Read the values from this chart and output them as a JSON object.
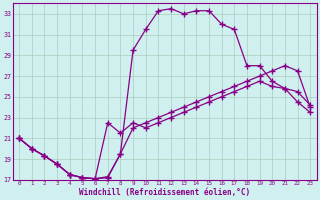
{
  "xlabel": "Windchill (Refroidissement éolien,°C)",
  "bg_color": "#cff0ee",
  "line_color": "#880088",
  "grid_color": "#aaccbb",
  "xlim": [
    -0.5,
    23.5
  ],
  "ylim": [
    17,
    34
  ],
  "yticks": [
    17,
    19,
    21,
    23,
    25,
    27,
    29,
    31,
    33
  ],
  "xticks": [
    0,
    1,
    2,
    3,
    4,
    5,
    6,
    7,
    8,
    9,
    10,
    11,
    12,
    13,
    14,
    15,
    16,
    17,
    18,
    19,
    20,
    21,
    22,
    23
  ],
  "line1_x": [
    0,
    1,
    2,
    3,
    4,
    5,
    6,
    7,
    8,
    9,
    10,
    11,
    12,
    13,
    14,
    15,
    16,
    17,
    18,
    19,
    20,
    21,
    22,
    23
  ],
  "line1_y": [
    21.0,
    20.0,
    19.3,
    18.5,
    17.5,
    17.2,
    17.1,
    17.3,
    19.5,
    22.0,
    22.5,
    23.0,
    23.5,
    24.0,
    24.5,
    25.0,
    25.5,
    26.0,
    26.5,
    27.0,
    27.5,
    28.0,
    27.5,
    24.0
  ],
  "line2_x": [
    0,
    1,
    2,
    3,
    4,
    5,
    6,
    7,
    8,
    9,
    10,
    11,
    12,
    13,
    14,
    15,
    16,
    17,
    18,
    19,
    20,
    21,
    22,
    23
  ],
  "line2_y": [
    21.0,
    20.0,
    19.3,
    18.5,
    17.5,
    17.2,
    17.1,
    22.5,
    21.5,
    22.5,
    22.0,
    22.5,
    23.0,
    23.5,
    24.0,
    24.5,
    25.0,
    25.5,
    26.0,
    26.5,
    26.0,
    25.8,
    25.5,
    24.2
  ],
  "line3_x": [
    0,
    1,
    2,
    3,
    4,
    5,
    6,
    7,
    8,
    9,
    10,
    11,
    12,
    13,
    14,
    15,
    16,
    17,
    18,
    19,
    20,
    21,
    22,
    23
  ],
  "line3_y": [
    21.0,
    20.0,
    19.3,
    18.5,
    17.5,
    17.2,
    17.1,
    17.2,
    19.5,
    29.5,
    31.5,
    33.3,
    33.5,
    33.0,
    33.3,
    33.3,
    32.0,
    31.5,
    28.0,
    28.0,
    26.5,
    25.8,
    24.5,
    23.5
  ]
}
